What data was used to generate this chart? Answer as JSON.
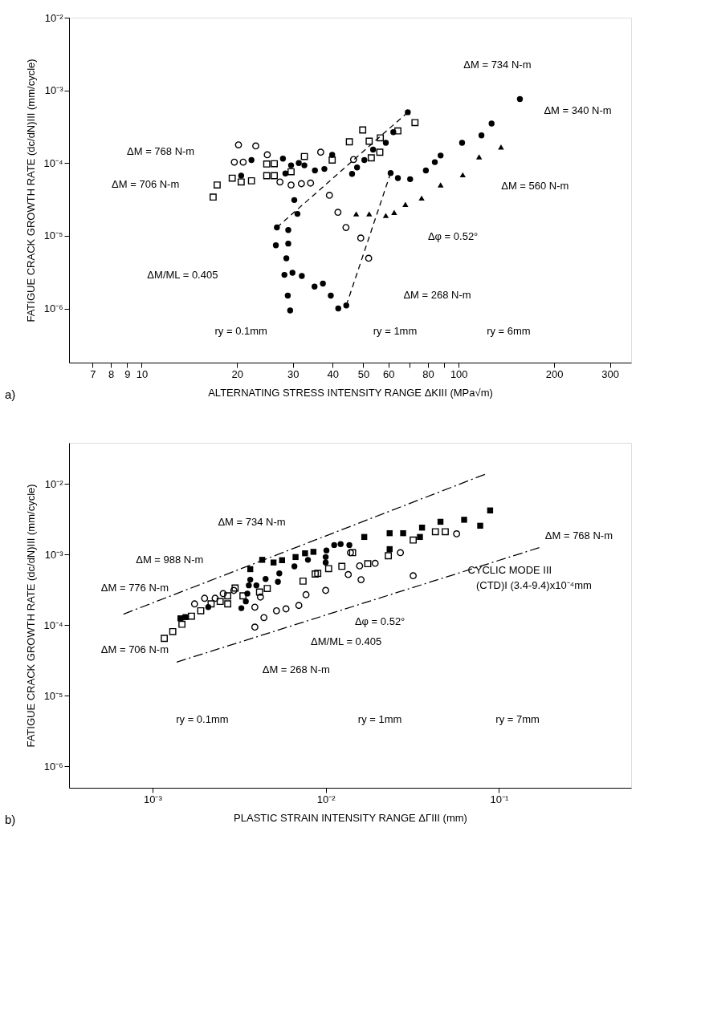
{
  "chart_data": [
    {
      "type": "scatter",
      "log": "xy",
      "grid": false,
      "xlabel": "ALTERNATING STRESS INTENSITY RANGE ΔKIII (MPa√m)",
      "ylabel": "FATIGUE CRACK GROWTH RATE (dc/dN)III (mm/cycle)",
      "xlim": [
        5.9,
        350
      ],
      "ylim": [
        1.8e-07,
        0.01
      ],
      "xticks": [
        7,
        8,
        9,
        10,
        20,
        30,
        40,
        50,
        60,
        {
          "value": 70,
          "label": null
        },
        80,
        {
          "value": 90,
          "label": null
        },
        100,
        200,
        300
      ],
      "yticks": [
        {
          "value": 0.01,
          "label": "10⁻²"
        },
        {
          "value": 0.001,
          "label": "10⁻³"
        },
        {
          "value": 0.0001,
          "label": "10⁻⁴"
        },
        {
          "value": 1e-05,
          "label": "10⁻⁵"
        },
        {
          "value": 1e-06,
          "label": "10⁻⁶"
        }
      ],
      "series": [
        {
          "marker": "square-open",
          "color": "#000000",
          "x": [
            16.8,
            17.3,
            19.3,
            20.6,
            22.2,
            24.8,
            26.2,
            24.8,
            26.2,
            29.6,
            32.6,
            39.9,
            45.2,
            49.8,
            52.2,
            53.0,
            56.4,
            56.6,
            64.3,
            72.8
          ],
          "values": [
            3.4e-05,
            5e-05,
            6.2e-05,
            5.5e-05,
            5.7e-05,
            6.7e-05,
            6.7e-05,
            9.7e-05,
            9.8e-05,
            7.6e-05,
            0.000123,
            0.00011,
            0.000196,
            0.000285,
            0.0002,
            0.000118,
            0.000141,
            0.000222,
            0.000277,
            0.00036
          ]
        },
        {
          "marker": "circle-open",
          "color": "#000000",
          "x": [
            20.2,
            22.9,
            19.6,
            20.9,
            24.9,
            27.3,
            29.6,
            31.9,
            34.1,
            36.7,
            46.6,
            39.1,
            41.6,
            44.1,
            49.1,
            52.0
          ],
          "values": [
            0.000178,
            0.000172,
            0.000103,
            0.000103,
            0.00013,
            5.5e-05,
            5e-05,
            5.2e-05,
            5.3e-05,
            0.000141,
            0.000112,
            3.6e-05,
            2.1e-05,
            1.3e-05,
            9.3e-06,
            4.9e-06
          ]
        },
        {
          "marker": "circle",
          "color": "#000000",
          "x": [
            22.2,
            20.6,
            27.9,
            28.4,
            29.6,
            31.3,
            32.6,
            30.3,
            31.0,
            26.7,
            29.0,
            26.5,
            29.0,
            28.6,
            28.2,
            29.9,
            32.0,
            28.9,
            29.4,
            35.1,
            37.3,
            39.5,
            41.7,
            44.2,
            35.2,
            37.7,
            39.9,
            46.1,
            47.8,
            50.4,
            53.7,
            58.9,
            62.2,
            69.1,
            61.0,
            64.3,
            70.3,
            78.8,
            84.1,
            87.7,
            102.5,
            118,
            127,
            156
          ],
          "values": [
            0.00011,
            6.7e-05,
            0.000115,
            7.2e-05,
            9.3e-05,
            0.0001,
            9.3e-05,
            3.1e-05,
            2e-05,
            1.3e-05,
            1.2e-05,
            7.4e-06,
            7.8e-06,
            4.9e-06,
            2.9e-06,
            3.1e-06,
            2.8e-06,
            1.5e-06,
            9.4e-07,
            2e-06,
            2.2e-06,
            1.5e-06,
            1e-06,
            1.1e-06,
            7.9e-05,
            8.3e-05,
            0.00013,
            7.1e-05,
            8.7e-05,
            0.00011,
            0.000153,
            0.00019,
            0.000266,
            0.0005,
            7.3e-05,
            6.2e-05,
            6e-05,
            7.9e-05,
            0.000103,
            0.000127,
            0.00019,
            0.00024,
            0.00035,
            0.00076
          ]
        },
        {
          "marker": "triangle",
          "color": "#000000",
          "x": [
            47.5,
            52.2,
            58.9,
            62.6,
            67.9,
            76.4,
            87.7,
            103,
            116,
            136
          ],
          "values": [
            2e-05,
            2e-05,
            1.9e-05,
            2.1e-05,
            2.7e-05,
            3.3e-05,
            5e-05,
            6.9e-05,
            0.000122,
            0.000166
          ]
        },
        {
          "type": "line",
          "line_style": "dashed",
          "color": "#000000",
          "x": [
            26.7,
            69.1
          ],
          "values": [
            1.3e-05,
            0.0005
          ]
        },
        {
          "type": "line",
          "line_style": "dashed",
          "color": "#000000",
          "x": [
            44.2,
            61.0
          ],
          "values": [
            1.1e-06,
            7.3e-05
          ]
        }
      ],
      "annotations": [
        "ΔM = 734 N-m",
        "ΔM = 340 N-m",
        "ΔM = 768 N-m",
        "ΔM = 706 N-m",
        "ΔM = 560 N-m",
        "Δφ = 0.52°",
        "ΔM/ML = 0.405",
        "ΔM = 268 N-m",
        "ry = 0.1mm",
        "ry = 1mm",
        "ry = 6mm",
        "a)"
      ]
    },
    {
      "type": "scatter",
      "log": "xy",
      "grid": false,
      "xlabel": "PLASTIC STRAIN INTENSITY RANGE ΔΓIII (mm)",
      "ylabel": "FATIGUE CRACK GROWTH RATE (dc/dN)III (mm/cycle)",
      "xlim": [
        0.00033,
        0.58
      ],
      "ylim": [
        5e-07,
        0.038
      ],
      "xticks": [
        {
          "value": 0.001,
          "label": "10⁻³"
        },
        {
          "value": 0.01,
          "label": "10⁻²"
        },
        {
          "value": 0.1,
          "label": "10⁻¹"
        }
      ],
      "yticks": [
        {
          "value": 0.01,
          "label": "10⁻²"
        },
        {
          "value": 0.001,
          "label": "10⁻³"
        },
        {
          "value": 0.0001,
          "label": "10⁻⁴"
        },
        {
          "value": 1e-05,
          "label": "10⁻⁵"
        },
        {
          "value": 1e-06,
          "label": "10⁻⁶"
        }
      ],
      "series": [
        {
          "marker": "square-open",
          "color": "#000000",
          "x": [
            0.00117,
            0.00131,
            0.00148,
            0.00168,
            0.0019,
            0.00218,
            0.00246,
            0.00272,
            0.00272,
            0.00333,
            0.00415,
            0.0046,
            0.003,
            0.0074,
            0.0087,
            0.009,
            0.0104,
            0.0124,
            0.0143,
            0.0175,
            0.023,
            0.032,
            0.043,
            0.049
          ],
          "values": [
            6.5e-05,
            8.1e-05,
            0.000103,
            0.000134,
            0.00016,
            0.0002,
            0.000217,
            0.0002,
            0.00026,
            0.00026,
            0.000294,
            0.00033,
            0.000335,
            0.00042,
            0.00053,
            0.00054,
            0.00063,
            0.00068,
            0.00106,
            0.00074,
            0.00096,
            0.0016,
            0.0021,
            0.0021
          ]
        },
        {
          "marker": "circle-open",
          "color": "#000000",
          "x": [
            0.00175,
            0.002,
            0.0023,
            0.00256,
            0.00295,
            0.0039,
            0.0044,
            0.0039,
            0.0052,
            0.0059,
            0.007,
            0.0077,
            0.0042,
            0.01,
            0.0135,
            0.016,
            0.0157,
            0.0193,
            0.027,
            0.032,
            0.057,
            0.0139
          ],
          "values": [
            0.0002,
            0.00024,
            0.00024,
            0.00028,
            0.00031,
            0.00018,
            0.000128,
            9.4e-05,
            0.00016,
            0.00017,
            0.00019,
            0.00027,
            0.00025,
            0.00031,
            0.00052,
            0.00044,
            0.00069,
            0.00075,
            0.00106,
            0.0005,
            0.00196,
            0.00106
          ]
        },
        {
          "marker": "circle",
          "color": "#000000",
          "x": [
            0.00326,
            0.00346,
            0.00353,
            0.0036,
            0.00367,
            0.00398,
            0.0045,
            0.0053,
            0.0054,
            0.0066,
            0.0079,
            0.0021,
            0.01,
            0.0101,
            0.0112,
            0.0122,
            0.0137,
            0.01
          ],
          "values": [
            0.000174,
            0.000217,
            0.00028,
            0.000366,
            0.00044,
            0.000366,
            0.00045,
            0.00041,
            0.00054,
            0.00068,
            0.00084,
            0.00018,
            0.00092,
            0.00114,
            0.00136,
            0.0014,
            0.00136,
            0.00077
          ]
        },
        {
          "marker": "square",
          "color": "#000000",
          "x": [
            0.00145,
            0.00155,
            0.00367,
            0.0043,
            0.005,
            0.0056,
            0.0067,
            0.0076,
            0.0085,
            0.0167,
            0.0234,
            0.028,
            0.036,
            0.035,
            0.046,
            0.063,
            0.078,
            0.089,
            0.0234
          ],
          "values": [
            0.000125,
            0.00013,
            0.00062,
            0.00084,
            0.00077,
            0.00083,
            0.00092,
            0.00104,
            0.00109,
            0.00177,
            0.002,
            0.002,
            0.0024,
            0.00177,
            0.0029,
            0.0031,
            0.00255,
            0.0042,
            0.00119
          ]
        },
        {
          "type": "line",
          "line_style": "dashdot",
          "color": "#000000",
          "x": [
            0.00068,
            0.083
          ],
          "values": [
            0.000143,
            0.0136
          ]
        },
        {
          "type": "line",
          "line_style": "dashdot",
          "color": "#000000",
          "x": [
            0.00138,
            0.171
          ],
          "values": [
            3e-05,
            0.00125
          ]
        }
      ],
      "annotations": [
        "ΔM = 734 N-m",
        "ΔM = 988 N-m",
        "ΔM = 776 N-m",
        "ΔM = 706 N-m",
        "ΔM = 268 N-m",
        "ΔM/ML = 0.405",
        "Δφ = 0.52°",
        "ΔM = 768 N-m",
        "CYCLIC MODE III",
        "(CTD)I  (3.4-9.4)x10⁻⁴mm",
        "ry = 0.1mm",
        "ry = 1mm",
        "ry = 7mm",
        "b)"
      ]
    }
  ]
}
